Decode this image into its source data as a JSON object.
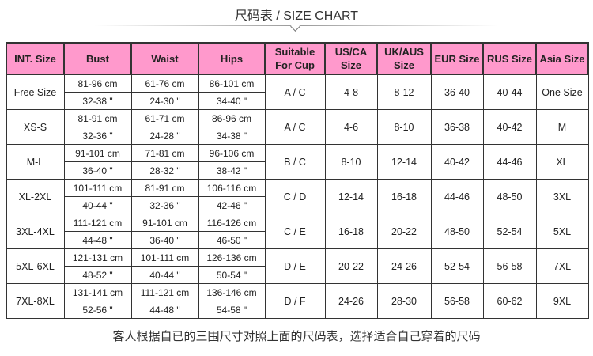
{
  "title": "尺码表 / SIZE CHART",
  "headers": [
    "INT. Size",
    "Bust",
    "Waist",
    "Hips",
    "Suitable For Cup",
    "US/CA Size",
    "UK/AUS Size",
    "EUR Size",
    "RUS Size",
    "Asia Size"
  ],
  "rows": [
    {
      "int": "Free Size",
      "bust_cm": "81-96 cm",
      "bust_in": "32-38 \"",
      "waist_cm": "61-76 cm",
      "waist_in": "24-30 \"",
      "hips_cm": "86-101 cm",
      "hips_in": "34-40 \"",
      "cup": "A / C",
      "us": "4-8",
      "uk": "8-12",
      "eur": "36-40",
      "rus": "40-44",
      "asia": "One Size"
    },
    {
      "int": "XS-S",
      "bust_cm": "81-91 cm",
      "bust_in": "32-36 \"",
      "waist_cm": "61-71 cm",
      "waist_in": "24-28 \"",
      "hips_cm": "86-96 cm",
      "hips_in": "34-38 \"",
      "cup": "A / C",
      "us": "4-6",
      "uk": "8-10",
      "eur": "36-38",
      "rus": "40-42",
      "asia": "M"
    },
    {
      "int": "M-L",
      "bust_cm": "91-101 cm",
      "bust_in": "36-40 \"",
      "waist_cm": "71-81 cm",
      "waist_in": "28-32 \"",
      "hips_cm": "96-106 cm",
      "hips_in": "38-42 \"",
      "cup": "B / C",
      "us": "8-10",
      "uk": "12-14",
      "eur": "40-42",
      "rus": "44-46",
      "asia": "XL"
    },
    {
      "int": "XL-2XL",
      "bust_cm": "101-111 cm",
      "bust_in": "40-44 \"",
      "waist_cm": "81-91 cm",
      "waist_in": "32-36 \"",
      "hips_cm": "106-116 cm",
      "hips_in": "42-46 \"",
      "cup": "C / D",
      "us": "12-14",
      "uk": "16-18",
      "eur": "44-46",
      "rus": "48-50",
      "asia": "3XL"
    },
    {
      "int": "3XL-4XL",
      "bust_cm": "111-121 cm",
      "bust_in": "44-48 \"",
      "waist_cm": "91-101 cm",
      "waist_in": "36-40 \"",
      "hips_cm": "116-126 cm",
      "hips_in": "46-50 \"",
      "cup": "C / E",
      "us": "16-18",
      "uk": "20-22",
      "eur": "48-50",
      "rus": "52-54",
      "asia": "5XL"
    },
    {
      "int": "5XL-6XL",
      "bust_cm": "121-131 cm",
      "bust_in": "48-52 \"",
      "waist_cm": "101-111 cm",
      "waist_in": "40-44 \"",
      "hips_cm": "126-136 cm",
      "hips_in": "50-54 \"",
      "cup": "D / E",
      "us": "20-22",
      "uk": "24-26",
      "eur": "52-54",
      "rus": "56-58",
      "asia": "7XL"
    },
    {
      "int": "7XL-8XL",
      "bust_cm": "131-141 cm",
      "bust_in": "52-56 \"",
      "waist_cm": "111-121 cm",
      "waist_in": "44-48 \"",
      "hips_cm": "136-146 cm",
      "hips_in": "54-58 \"",
      "cup": "D / F",
      "us": "24-26",
      "uk": "28-30",
      "eur": "56-58",
      "rus": "60-62",
      "asia": "9XL"
    }
  ],
  "footer": "客人根据自已的三围尺寸对照上面的尺码表，选择适合自己穿着的尺码",
  "colors": {
    "header_bg": "#FF99CC",
    "border": "#333333"
  }
}
